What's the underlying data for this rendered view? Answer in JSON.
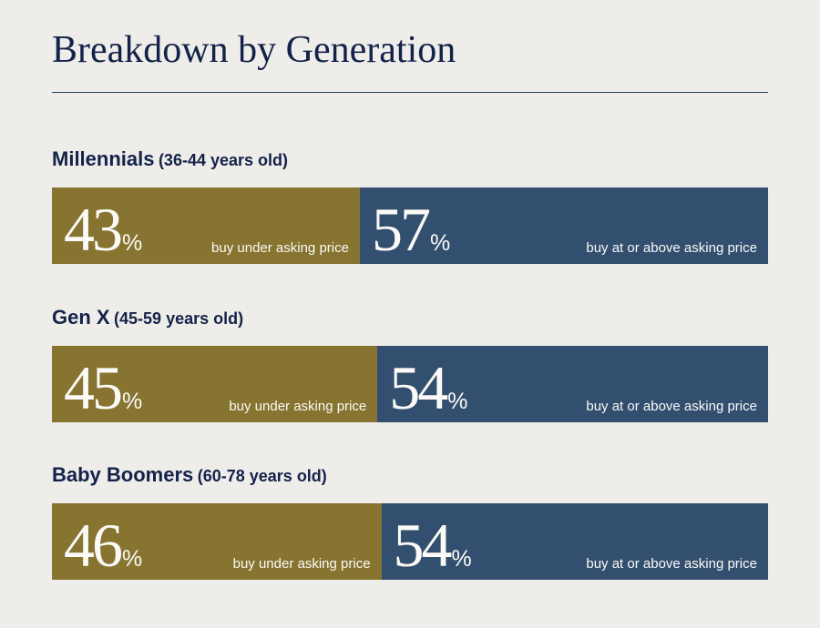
{
  "title": "Breakdown by Generation",
  "colors": {
    "under": "#877430",
    "above": "#334f70",
    "text_dark": "#13224a",
    "background": "#efede9"
  },
  "chart_data": {
    "type": "bar",
    "orientation": "horizontal-stacked-100",
    "title": "Breakdown by Generation",
    "categories": [
      "Millennials",
      "Gen X",
      "Baby Boomers"
    ],
    "series": [
      {
        "name": "buy under asking price",
        "values": [
          43,
          45,
          46
        ]
      },
      {
        "name": "buy at or above asking price",
        "values": [
          57,
          54,
          54
        ]
      }
    ],
    "groups": [
      {
        "name": "Millennials",
        "age": "(36-44 years old)",
        "under": {
          "value": "43",
          "unit": "%",
          "label": "buy under asking price"
        },
        "above": {
          "value": "57",
          "unit": "%",
          "label": "buy at or above asking price"
        }
      },
      {
        "name": "Gen X",
        "age": "(45-59 years old)",
        "under": {
          "value": "45",
          "unit": "%",
          "label": "buy under asking price"
        },
        "above": {
          "value": "54",
          "unit": "%",
          "label": "buy at or above asking price"
        }
      },
      {
        "name": "Baby Boomers",
        "age": "(60-78 years old)",
        "under": {
          "value": "46",
          "unit": "%",
          "label": "buy under asking price"
        },
        "above": {
          "value": "54",
          "unit": "%",
          "label": "buy at or above asking price"
        }
      }
    ]
  }
}
